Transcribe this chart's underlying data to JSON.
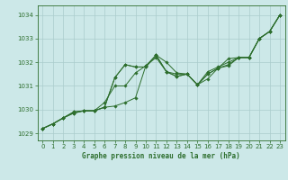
{
  "title": "Graphe pression niveau de la mer (hPa)",
  "bg_color": "#cce8e8",
  "grid_color": "#aacccc",
  "line_color": "#2d6e2d",
  "xlim": [
    -0.5,
    23.5
  ],
  "ylim": [
    1028.7,
    1034.4
  ],
  "yticks": [
    1029,
    1030,
    1031,
    1032,
    1033,
    1034
  ],
  "xticks": [
    0,
    1,
    2,
    3,
    4,
    5,
    6,
    7,
    8,
    9,
    10,
    11,
    12,
    13,
    14,
    15,
    16,
    17,
    18,
    19,
    20,
    21,
    22,
    23
  ],
  "series": [
    [
      1029.2,
      1029.4,
      1029.65,
      1029.9,
      1029.95,
      1029.95,
      1030.3,
      1031.0,
      1031.0,
      1031.55,
      1031.85,
      1032.3,
      1032.0,
      1031.55,
      1031.5,
      1031.05,
      1031.6,
      1031.8,
      1032.0,
      1032.2,
      1032.2,
      1033.0,
      1033.3,
      1034.0
    ],
    [
      1029.2,
      1029.4,
      1029.65,
      1029.9,
      1029.95,
      1029.95,
      1030.1,
      1030.15,
      1030.3,
      1030.5,
      1031.85,
      1032.2,
      1031.6,
      1031.5,
      1031.5,
      1031.05,
      1031.5,
      1031.75,
      1031.85,
      1032.2,
      1032.2,
      1033.0,
      1033.3,
      1034.0
    ],
    [
      1029.2,
      1029.4,
      1029.65,
      1029.85,
      1029.95,
      1029.95,
      1030.1,
      1031.35,
      1031.9,
      1031.8,
      1031.8,
      1032.3,
      1031.6,
      1031.4,
      1031.5,
      1031.05,
      1031.5,
      1031.75,
      1031.9,
      1032.2,
      1032.2,
      1033.0,
      1033.3,
      1034.0
    ],
    [
      1029.2,
      1029.4,
      1029.65,
      1029.85,
      1029.95,
      1029.95,
      1030.1,
      1031.35,
      1031.9,
      1031.8,
      1031.8,
      1032.3,
      1031.6,
      1031.4,
      1031.5,
      1031.05,
      1031.3,
      1031.75,
      1032.15,
      1032.2,
      1032.2,
      1033.0,
      1033.3,
      1034.0
    ]
  ]
}
